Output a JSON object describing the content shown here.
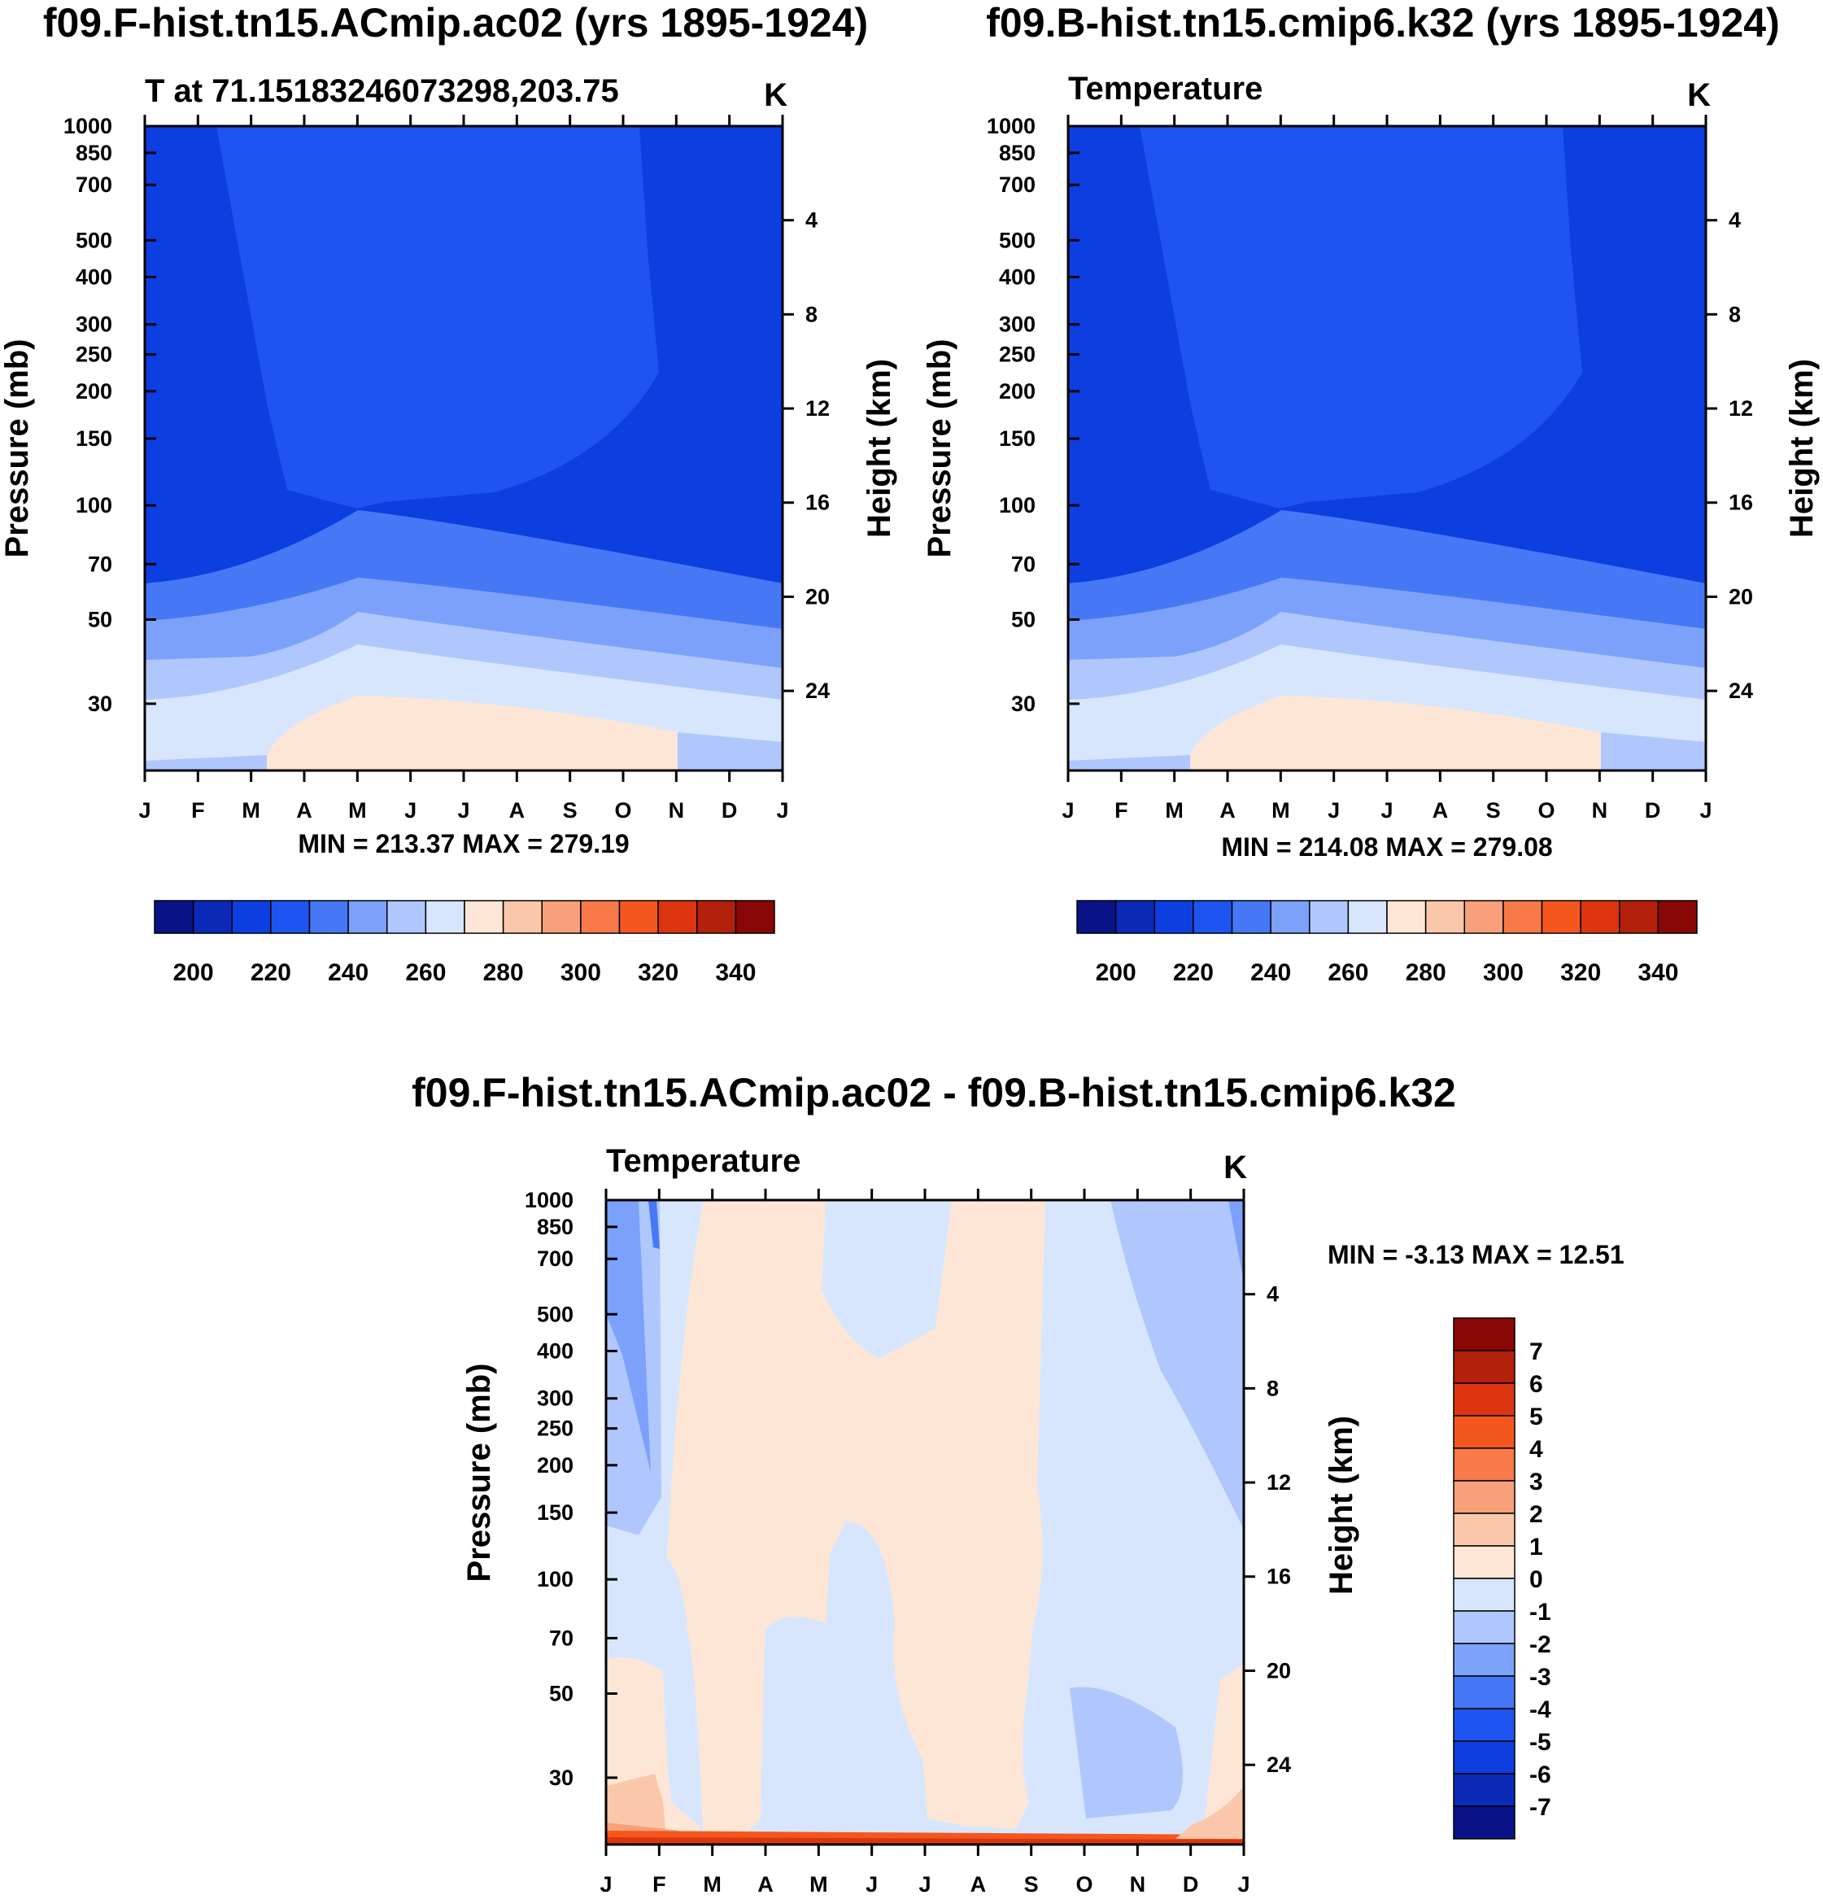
{
  "panels": [
    {
      "id": "left",
      "title": "f09.F-hist.tn15.ACmip.ac02 (yrs 1895-1924)",
      "subtitle": "T at 71.15183246073298,203.75",
      "units": "K",
      "minmax": "MIN = 213.37 MAX = 279.19"
    },
    {
      "id": "right",
      "title": "f09.B-hist.tn15.cmip6.k32 (yrs 1895-1924)",
      "subtitle": "Temperature",
      "units": "K",
      "minmax": "MIN = 214.08 MAX = 279.08"
    },
    {
      "id": "diff",
      "title": "f09.F-hist.tn15.ACmip.ac02 - f09.B-hist.tn15.cmip6.k32",
      "subtitle": "Temperature",
      "units": "K",
      "minmax": "MIN =  -3.13 MAX =  12.51"
    }
  ],
  "axes": {
    "ylabel": "Pressure (mb)",
    "y2label": "Height (km)",
    "pressure_ticks": [
      "30",
      "50",
      "70",
      "100",
      "150",
      "200",
      "250",
      "300",
      "400",
      "500",
      "700",
      "850",
      "1000"
    ],
    "height_ticks": [
      "24",
      "20",
      "16",
      "12",
      "8",
      "4"
    ],
    "month_ticks": [
      "J",
      "F",
      "M",
      "A",
      "M",
      "J",
      "J",
      "A",
      "S",
      "O",
      "N",
      "D",
      "J"
    ]
  },
  "colorbars": {
    "abs_labels": [
      "200",
      "220",
      "240",
      "260",
      "280",
      "300",
      "320",
      "340"
    ],
    "diff_labels": [
      "7",
      "6",
      "5",
      "4",
      "3",
      "2",
      "1",
      "0",
      "-1",
      "-2",
      "-3",
      "-4",
      "-5",
      "-6",
      "-7"
    ],
    "palette": [
      "#0a1288",
      "#0b2ab8",
      "#0c3ee0",
      "#1e55f0",
      "#4678f5",
      "#7ca1fa",
      "#afc7fc",
      "#d8e6fd",
      "#fde6d5",
      "#fbc7aa",
      "#f7a07a",
      "#f77a48",
      "#f4571e",
      "#dc3510",
      "#b3200b",
      "#890707"
    ]
  },
  "chart_data": [
    {
      "type": "contour",
      "title": "f09.F-hist.tn15.ACmip.ac02 (yrs 1895-1924)",
      "variable": "T at 71.15183246073298,203.75",
      "units": "K",
      "x": "month (J..J)",
      "y": "pressure (mb), log scale, 1000 to ~20",
      "levels": [
        195,
        205,
        215,
        225,
        235,
        245,
        255,
        265,
        275,
        285,
        295,
        305,
        315,
        325,
        335,
        345
      ],
      "min": 213.37,
      "max": 279.19
    },
    {
      "type": "contour",
      "title": "f09.B-hist.tn15.cmip6.k32 (yrs 1895-1924)",
      "variable": "Temperature",
      "units": "K",
      "levels": [
        195,
        205,
        215,
        225,
        235,
        245,
        255,
        265,
        275,
        285,
        295,
        305,
        315,
        325,
        335,
        345
      ],
      "min": 214.08,
      "max": 279.08
    },
    {
      "type": "contour",
      "title": "f09.F-hist.tn15.ACmip.ac02 - f09.B-hist.tn15.cmip6.k32",
      "variable": "Temperature difference",
      "units": "K",
      "levels": [
        -7,
        -6,
        -5,
        -4,
        -3,
        -2,
        -1,
        0,
        1,
        2,
        3,
        4,
        5,
        6,
        7
      ],
      "min": -3.13,
      "max": 12.51
    }
  ]
}
